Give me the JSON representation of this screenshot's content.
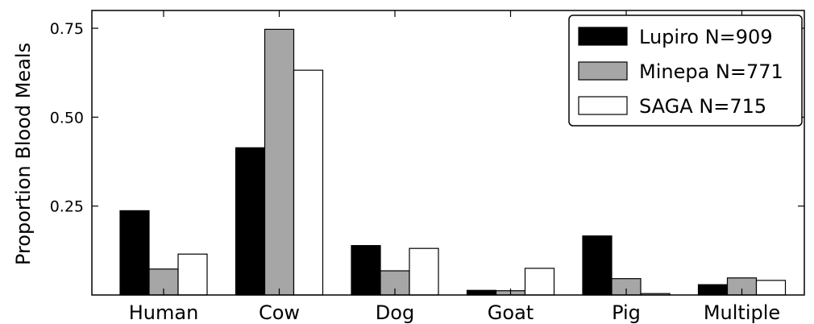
{
  "chart_data": {
    "type": "bar",
    "title": "",
    "xlabel": "",
    "ylabel": "Proportion Blood Meals",
    "categories": [
      "Human",
      "Cow",
      "Dog",
      "Goat",
      "Pig",
      "Multiple"
    ],
    "series": [
      {
        "name": "Lupiro N=909",
        "color": "#000000",
        "values": [
          0.237,
          0.414,
          0.139,
          0.013,
          0.166,
          0.029
        ]
      },
      {
        "name": "Minepa N=771",
        "color": "#a6a6a6",
        "values": [
          0.073,
          0.747,
          0.068,
          0.012,
          0.046,
          0.048
        ]
      },
      {
        "name": "SAGA N=715",
        "color": "#ffffff",
        "values": [
          0.115,
          0.632,
          0.131,
          0.075,
          0.004,
          0.041
        ]
      }
    ],
    "yticks": [
      0.25,
      0.5,
      0.75
    ],
    "ytick_labels": [
      "0.25",
      "0.50",
      "0.75"
    ],
    "ylim": [
      0,
      0.8
    ],
    "grid": false,
    "legend_position": "top-right"
  }
}
